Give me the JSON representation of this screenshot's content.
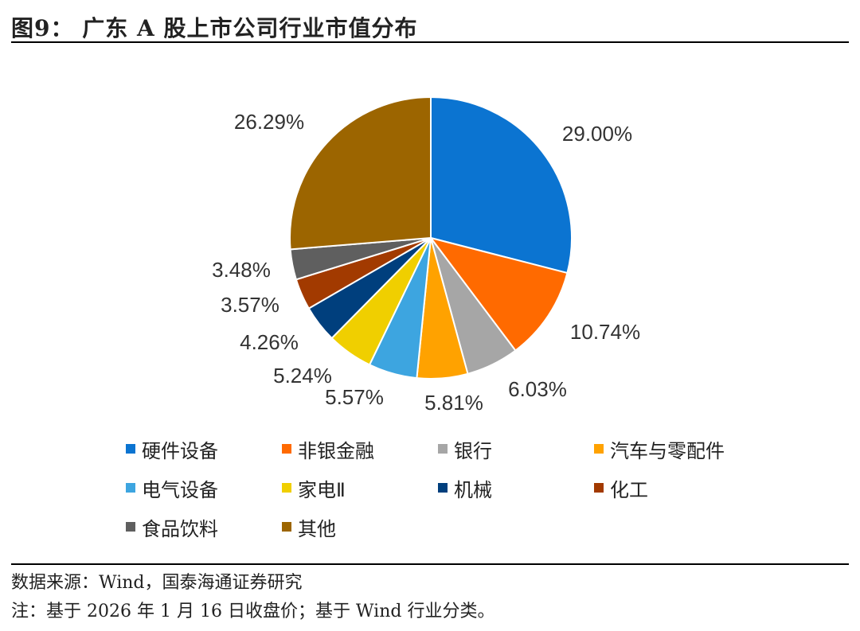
{
  "figure": {
    "title": "图9：  广东 A 股上市公司行业市值分布",
    "source": "数据来源：Wind，国泰海通证券研究",
    "note": "注：基于 2026 年 1 月 16 日收盘价；基于 Wind 行业分类。"
  },
  "chart_data": {
    "type": "pie",
    "categories": [
      "硬件设备",
      "非银金融",
      "银行",
      "汽车与零配件",
      "电气设备",
      "家电Ⅱ",
      "机械",
      "化工",
      "食品饮料",
      "其他"
    ],
    "values": [
      29.0,
      10.74,
      6.03,
      5.81,
      5.57,
      5.24,
      4.26,
      3.57,
      3.48,
      26.29
    ],
    "labels": [
      "29.00%",
      "10.74%",
      "6.03%",
      "5.81%",
      "5.57%",
      "5.24%",
      "4.26%",
      "3.57%",
      "3.48%",
      "26.29%"
    ],
    "colors": [
      "#0B74D1",
      "#FF6A00",
      "#A6A6A6",
      "#FFA200",
      "#3DA5E0",
      "#F0CF00",
      "#003F7D",
      "#A23A00",
      "#5F5F5F",
      "#9C6500"
    ],
    "start_angle": "12 o'clock",
    "direction": "clockwise",
    "legend_position": "bottom"
  }
}
